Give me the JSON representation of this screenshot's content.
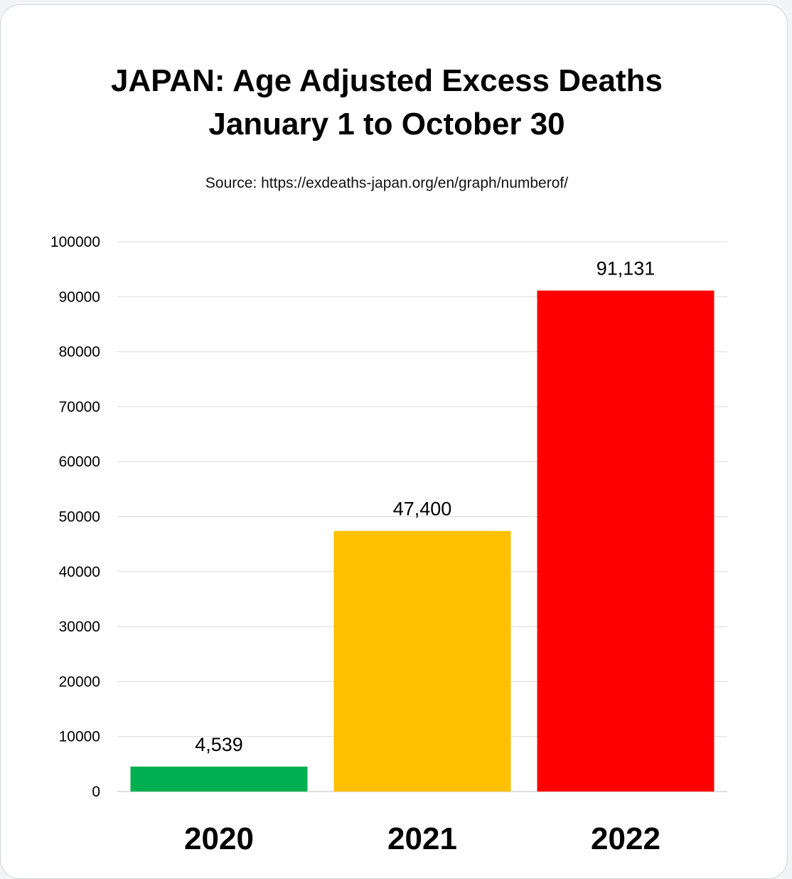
{
  "chart_data": {
    "type": "bar",
    "title_line1": "JAPAN: Age Adjusted Excess Deaths",
    "title_line2": "January 1 to October 30",
    "subtitle": "Source: https://exdeaths-japan.org/en/graph/numberof/",
    "categories": [
      "2020",
      "2021",
      "2022"
    ],
    "values": [
      4539,
      47400,
      91131
    ],
    "data_labels": [
      "4,539",
      "47,400",
      "91,131"
    ],
    "bar_colors": [
      "#00b050",
      "#ffc000",
      "#ff0000"
    ],
    "y_ticks": [
      0,
      10000,
      20000,
      30000,
      40000,
      50000,
      60000,
      70000,
      80000,
      90000,
      100000
    ],
    "ylim": [
      0,
      100000
    ],
    "grid": true,
    "legend": "none"
  }
}
